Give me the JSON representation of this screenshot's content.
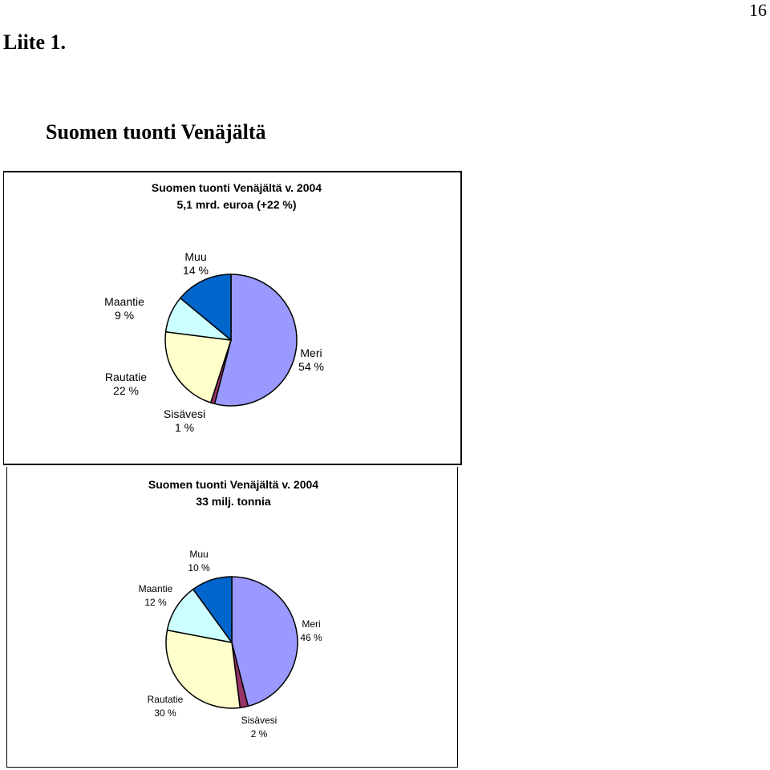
{
  "page": {
    "number": "16",
    "appendix_label": "Liite 1.",
    "heading": "Suomen tuonti Venäjältä"
  },
  "chart_data": [
    {
      "type": "pie",
      "title": "Suomen tuonti Venäjältä v. 2004",
      "subtitle": "5,1 mrd. euroa (+22 %)",
      "slices": [
        {
          "name": "Meri",
          "value": 54,
          "label": "54 %",
          "color": "#9999ff"
        },
        {
          "name": "Sisävesi",
          "value": 1,
          "label": "1 %",
          "color": "#993366"
        },
        {
          "name": "Rautatie",
          "value": 22,
          "label": "22 %",
          "color": "#ffffcc"
        },
        {
          "name": "Maantie",
          "value": 9,
          "label": "9 %",
          "color": "#ccffff"
        },
        {
          "name": "Muu",
          "value": 14,
          "label": "14 %",
          "color": "#0066cc"
        }
      ]
    },
    {
      "type": "pie",
      "title": "Suomen tuonti Venäjältä v. 2004",
      "subtitle": "33 milj. tonnia",
      "slices": [
        {
          "name": "Meri",
          "value": 46,
          "label": "46 %",
          "color": "#9999ff"
        },
        {
          "name": "Sisävesi",
          "value": 2,
          "label": "2 %",
          "color": "#993366"
        },
        {
          "name": "Rautatie",
          "value": 30,
          "label": "30 %",
          "color": "#ffffcc"
        },
        {
          "name": "Maantie",
          "value": 12,
          "label": "12 %",
          "color": "#ccffff"
        },
        {
          "name": "Muu",
          "value": 10,
          "label": "10 %",
          "color": "#0066cc"
        }
      ]
    }
  ]
}
